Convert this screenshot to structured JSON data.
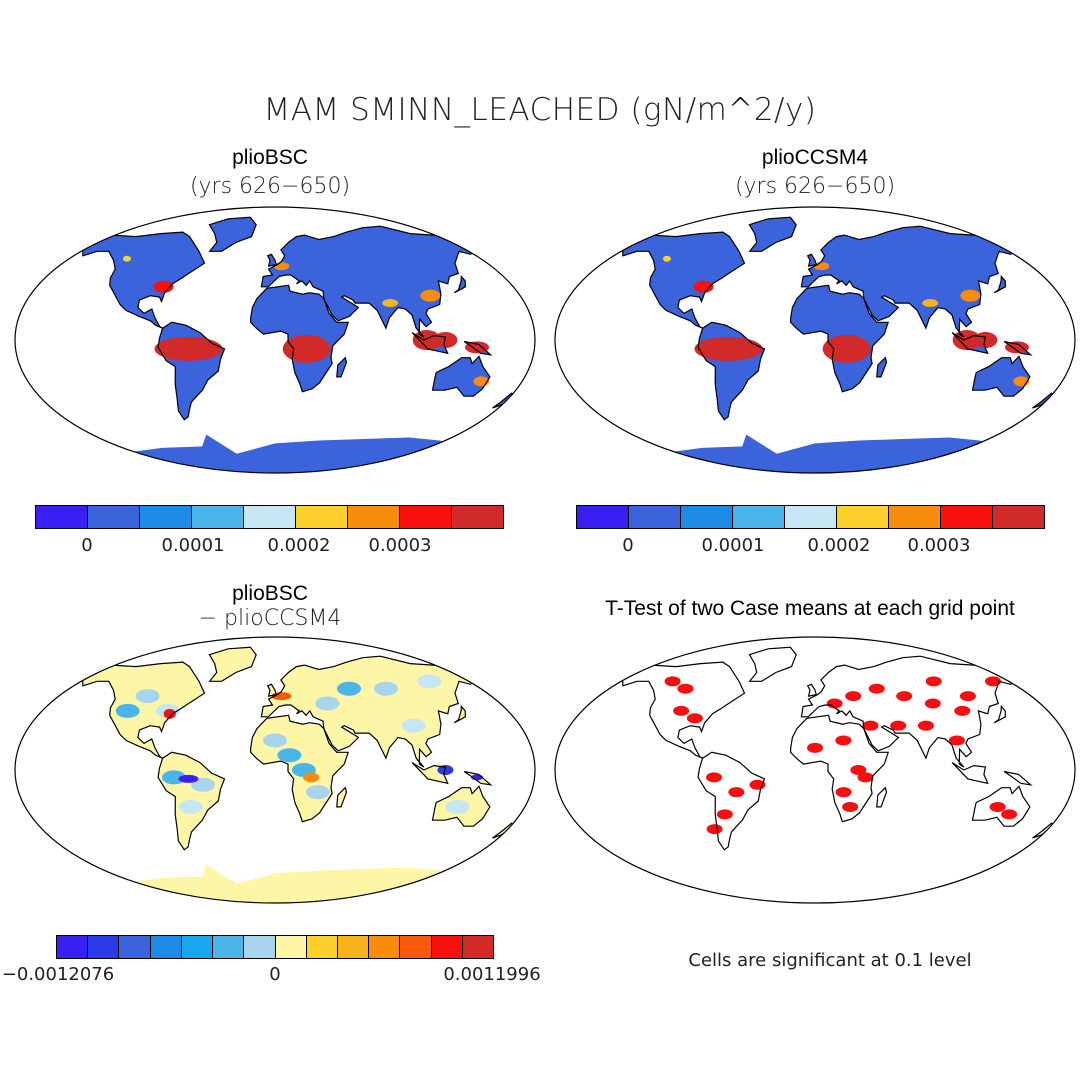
{
  "title": "MAM SMINN_LEACHED (gN/m^2/y)",
  "panels": [
    {
      "title": "plioBSC",
      "subtitle": "(yrs 626−650)",
      "kind": "field"
    },
    {
      "title": "plioCCSM4",
      "subtitle": "(yrs 626−650)",
      "kind": "field"
    },
    {
      "title": "plioBSC",
      "subtitle": "− plioCCSM4",
      "kind": "difference"
    },
    {
      "title": "T-Test of two Case means at each grid point",
      "subtitle": "",
      "kind": "significance"
    }
  ],
  "colorbar_field": {
    "colors": [
      "#3a1ff2",
      "#3a63dc",
      "#1e8ae8",
      "#4bb5ea",
      "#c6e6f4",
      "#fbd02a",
      "#f98c0c",
      "#f8100e",
      "#d12a28"
    ],
    "ticks": [
      "0",
      "0.0001",
      "0.0002",
      "0.0003"
    ]
  },
  "colorbar_diff": {
    "colors": [
      "#3a1ff2",
      "#2a3ae6",
      "#3a63dc",
      "#1e8ae8",
      "#18a6ee",
      "#4bb5ea",
      "#a8d4ee",
      "#fcf6a6",
      "#fbd02a",
      "#f8b21b",
      "#f98c0c",
      "#f85a0c",
      "#f8100e",
      "#d12a28"
    ],
    "ticks": [
      "−0.0012076",
      "0",
      "0.0011996"
    ]
  },
  "significance_note": "Cells are significant at 0.1 level",
  "colors": {
    "land_field": "#3a63dc",
    "land_diff": "#fcf6a6",
    "significant": "#f80e0e",
    "hotspot_field": "#d12a28",
    "coast": "#000000"
  }
}
